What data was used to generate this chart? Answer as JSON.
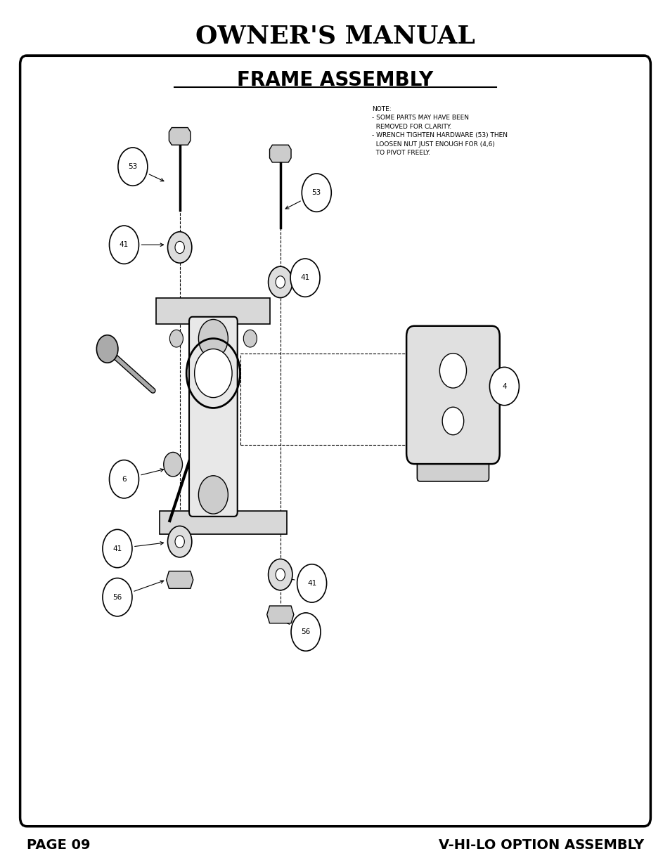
{
  "title": "OWNER'S MANUAL",
  "frame_title": "FRAME ASSEMBLY",
  "page_left": "PAGE 09",
  "page_right": "V-HI-LO OPTION ASSEMBLY",
  "note_text": "NOTE:\n- SOME PARTS MAY HAVE BEEN\n  REMOVED FOR CLARITY.\n- WRENCH TIGHTEN HARDWARE (53) THEN\n  LOOSEN NUT JUST ENOUGH FOR (4,6)\n  TO PIVOT FREELY.",
  "bg_color": "#ffffff",
  "border_color": "#000000",
  "text_color": "#000000",
  "figsize": [
    9.54,
    12.35
  ],
  "dpi": 100
}
